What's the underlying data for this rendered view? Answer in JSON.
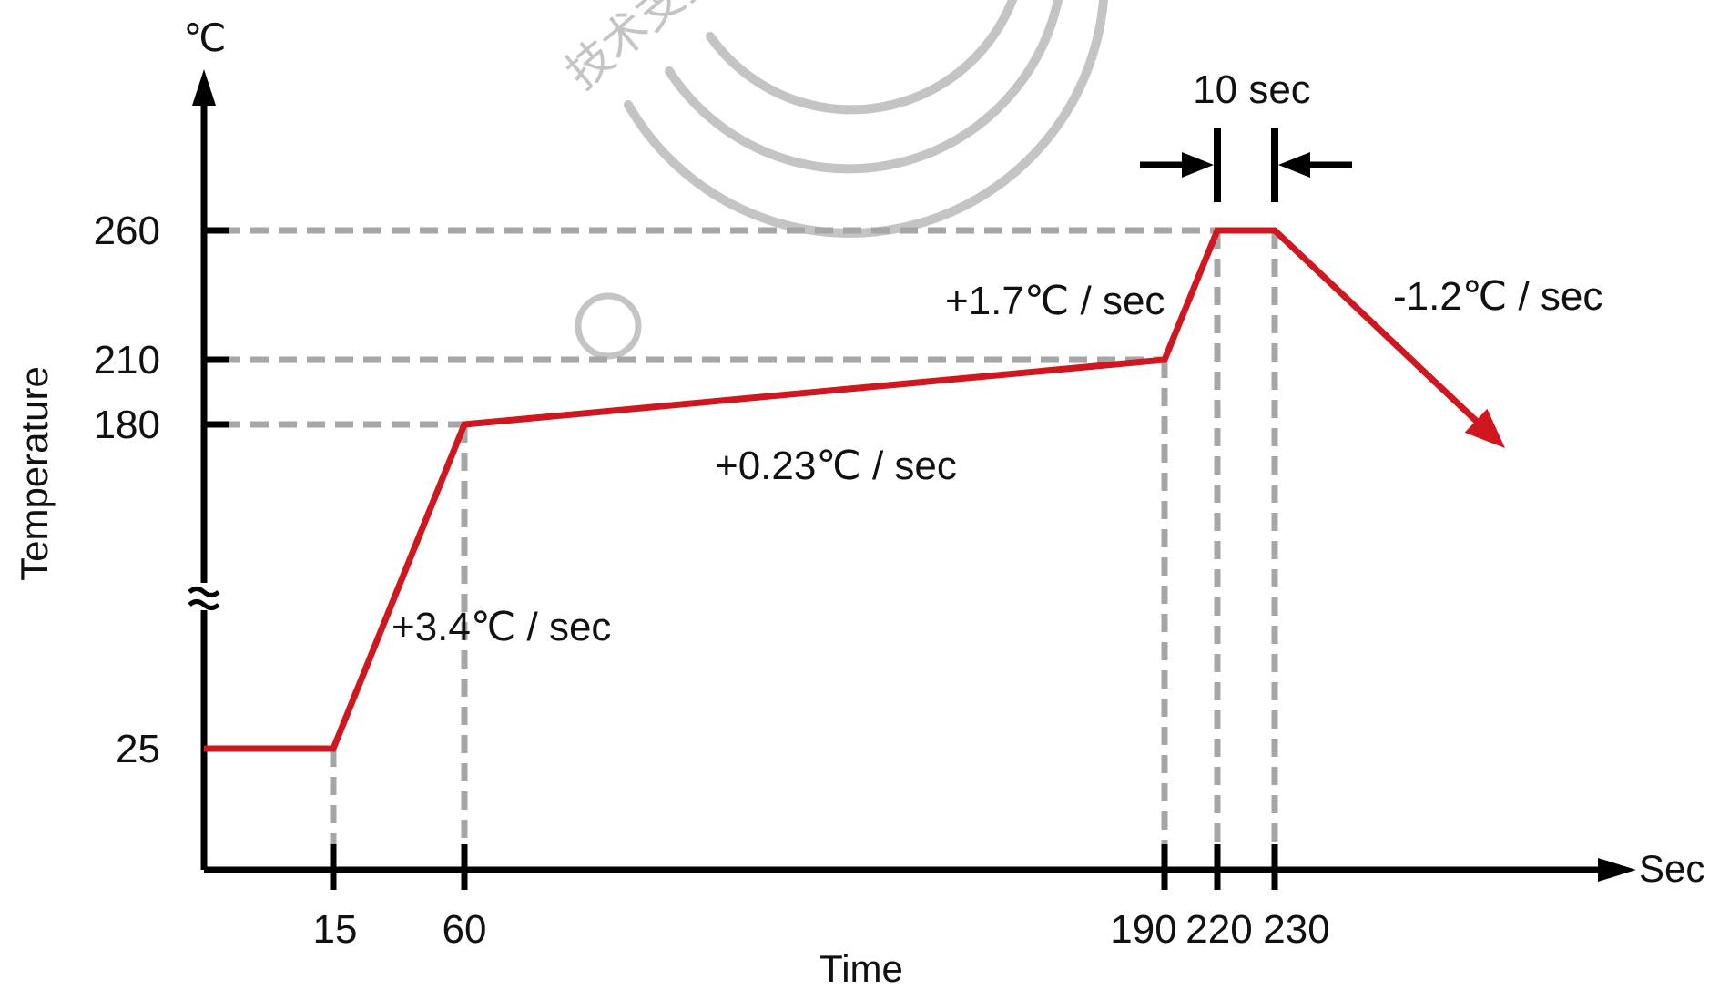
{
  "chart_data": {
    "type": "line",
    "title": "",
    "xlabel": "Time",
    "ylabel": "Temperature",
    "x_unit": "Sec",
    "y_unit": "℃",
    "x_ticks": [
      15,
      60,
      190,
      220,
      230
    ],
    "y_ticks": [
      25,
      180,
      210,
      260
    ],
    "y_axis_break": true,
    "series": [
      {
        "color": "#d0161e",
        "points": [
          [
            0,
            25
          ],
          [
            15,
            25
          ],
          [
            60,
            180
          ],
          [
            190,
            210
          ],
          [
            220,
            260
          ],
          [
            230,
            260
          ],
          [
            310,
            160
          ]
        ],
        "end_arrow": true
      }
    ],
    "reference_lines": {
      "horizontal": [
        260,
        210,
        180
      ],
      "vertical": [
        15,
        60,
        190,
        220,
        230
      ]
    },
    "annotations": [
      {
        "text": "+3.4℃ / sec"
      },
      {
        "text": "+0.23℃ / sec"
      },
      {
        "text": "+1.7℃ / sec"
      },
      {
        "text": "-1.2℃ / sec"
      },
      {
        "text": "10 sec"
      }
    ]
  },
  "watermark": {
    "text": "技术支持",
    "color": "#c4c4c4"
  },
  "colors": {
    "axis": "#000000",
    "guide": "#a6a6a6",
    "curve": "#d0161e"
  }
}
